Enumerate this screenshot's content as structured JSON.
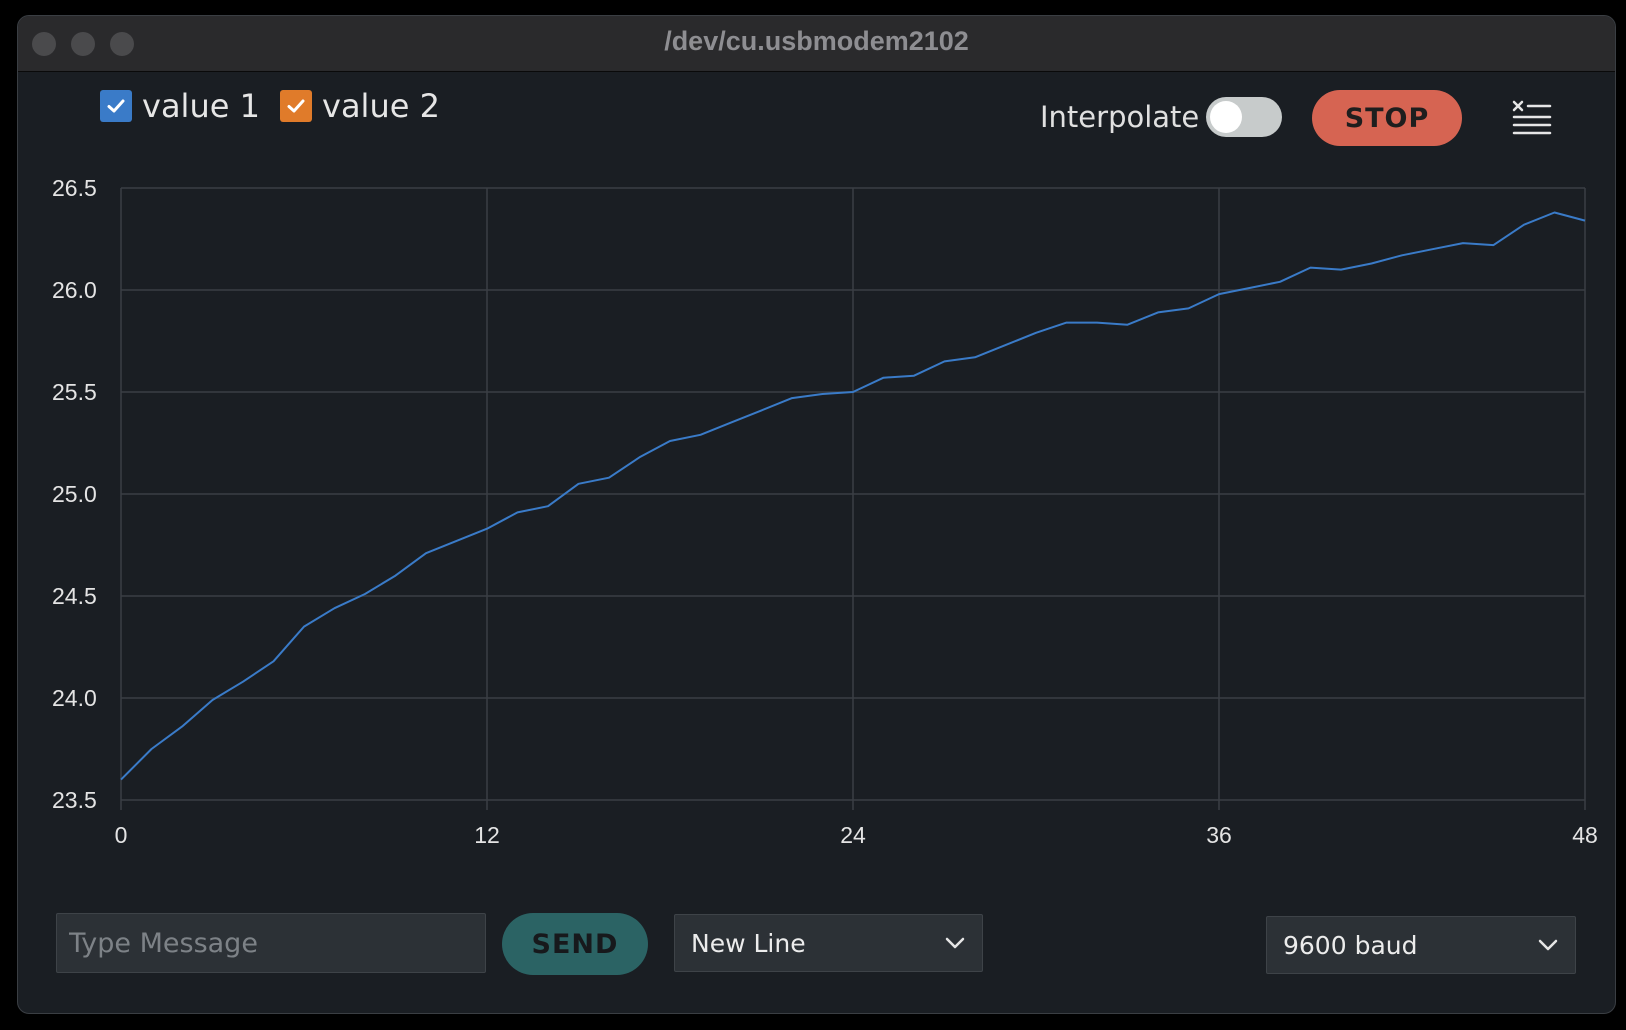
{
  "window": {
    "title": "/dev/cu.usbmodem2102"
  },
  "legend": [
    {
      "label": "value 1",
      "checked": true,
      "color": "#3a7bc8"
    },
    {
      "label": "value 2",
      "checked": true,
      "color": "#e07b2a"
    }
  ],
  "controls": {
    "interpolate_label": "Interpolate",
    "interpolate_on": false,
    "stop_label": "STOP",
    "clear_icon": "clear-list-icon"
  },
  "chart_data": {
    "type": "line",
    "x": [
      0,
      1,
      2,
      3,
      4,
      5,
      6,
      7,
      8,
      9,
      10,
      11,
      12,
      13,
      14,
      15,
      16,
      17,
      18,
      19,
      20,
      21,
      22,
      23,
      24,
      25,
      26,
      27,
      28,
      29,
      30,
      31,
      32,
      33,
      34,
      35,
      36,
      37,
      38,
      39,
      40,
      41,
      42,
      43,
      44,
      45,
      46,
      47,
      48
    ],
    "series": [
      {
        "color": "#3a7bc8",
        "values": [
          23.6,
          23.75,
          23.86,
          23.99,
          24.08,
          24.18,
          24.35,
          24.44,
          24.51,
          24.6,
          24.71,
          24.77,
          24.83,
          24.91,
          24.94,
          25.05,
          25.08,
          25.18,
          25.26,
          25.29,
          25.35,
          25.41,
          25.47,
          25.49,
          25.5,
          25.57,
          25.58,
          25.65,
          25.67,
          25.73,
          25.79,
          25.84,
          25.84,
          25.83,
          25.89,
          25.91,
          25.98,
          26.01,
          26.04,
          26.11,
          26.1,
          26.13,
          26.17,
          26.2,
          26.23,
          26.22,
          26.32,
          26.38,
          26.34
        ]
      }
    ],
    "xlim": [
      0,
      48
    ],
    "ylim": [
      23.5,
      26.5
    ],
    "x_ticks": [
      "0",
      "12",
      "24",
      "36",
      "48"
    ],
    "y_ticks": [
      "26.5",
      "26.0",
      "25.5",
      "25.0",
      "24.5",
      "24.0",
      "23.5"
    ],
    "grid": true
  },
  "footer": {
    "message_placeholder": "Type Message",
    "message_value": "",
    "send_label": "SEND",
    "line_ending": "New Line",
    "baud": "9600 baud"
  }
}
